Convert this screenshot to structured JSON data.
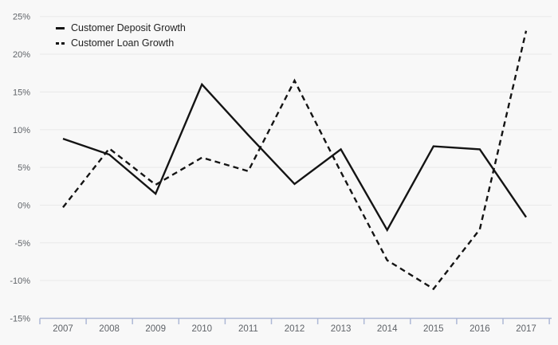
{
  "chart_data": {
    "type": "line",
    "title": "",
    "categories": [
      "2007",
      "2008",
      "2009",
      "2010",
      "2011",
      "2012",
      "2013",
      "2014",
      "2015",
      "2016",
      "2017"
    ],
    "series": [
      {
        "name": "Customer Deposit Growth",
        "line_style": "solid",
        "values": [
          8.8,
          6.7,
          1.5,
          16.0,
          9.3,
          2.8,
          7.4,
          -3.3,
          7.8,
          7.4,
          -1.6
        ]
      },
      {
        "name": "Customer Loan Growth",
        "line_style": "dashed",
        "values": [
          -0.3,
          7.5,
          2.7,
          6.3,
          4.5,
          16.5,
          4.4,
          -7.3,
          -11.1,
          -3.2,
          23.1
        ]
      }
    ],
    "ylim": [
      -15,
      25
    ],
    "ytick_step": 5,
    "ytick_labels": [
      "-15%",
      "-10%",
      "-5%",
      "0%",
      "5%",
      "10%",
      "15%",
      "20%",
      "25%"
    ],
    "grid": true,
    "legend_position": "top-left"
  },
  "colors": {
    "background": "#f8f8f8",
    "gridline": "#e9e9e9",
    "axis": "#aeb9d6",
    "series": "#141414",
    "tick_label": "#5f6368",
    "legend_text": "#1f1f1f"
  }
}
